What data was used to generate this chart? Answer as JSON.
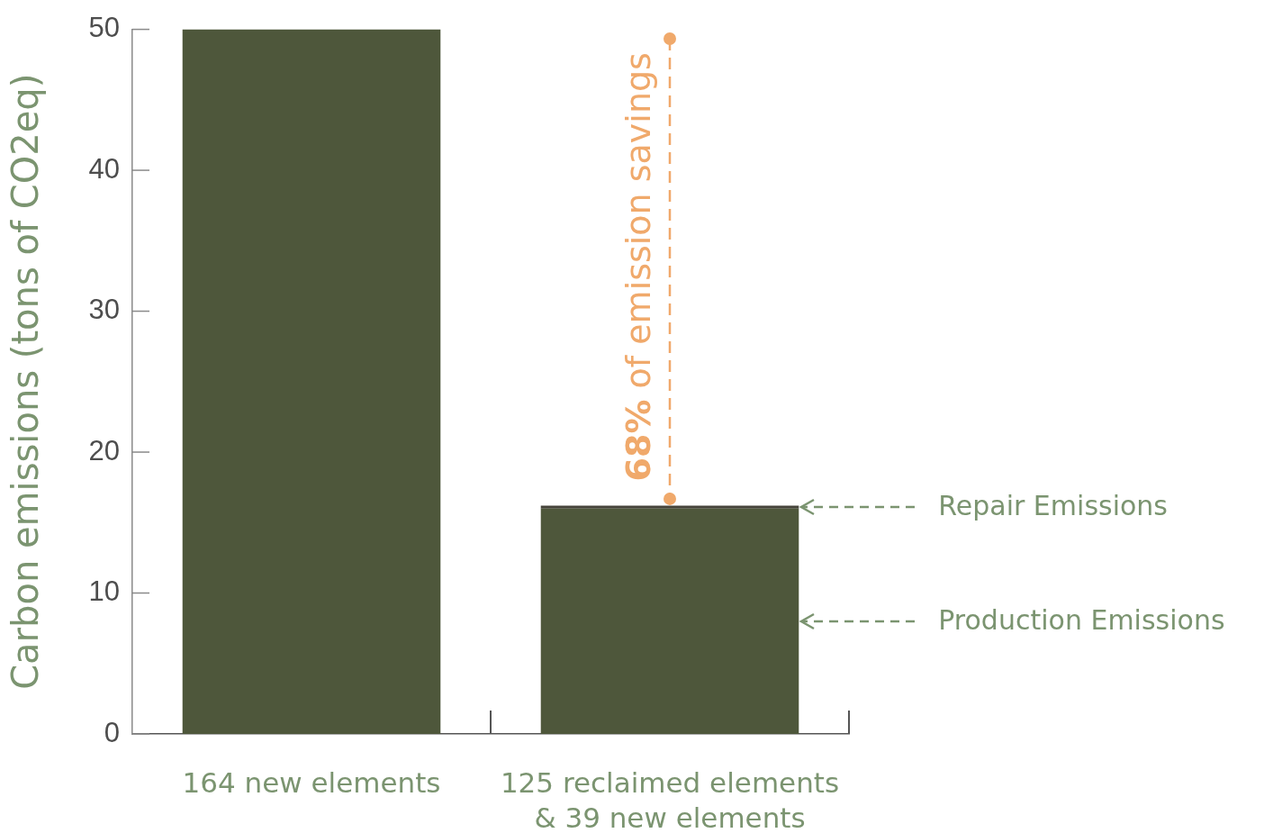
{
  "chart_data": {
    "type": "bar",
    "ylabel": "Carbon emissions (tons of CO2eq)",
    "categories": [
      "164 new elements",
      "125 reclaimed elements & 39 new elements"
    ],
    "series": [
      {
        "name": "Production Emissions",
        "color": "#4e573b",
        "values": [
          50,
          16
        ]
      },
      {
        "name": "Repair Emissions",
        "color": "#46443a",
        "values": [
          null,
          0.2
        ]
      }
    ],
    "stacked": true,
    "ylim": [
      0,
      50
    ],
    "yticks": [
      0,
      10,
      20,
      30,
      40,
      50
    ],
    "annotations": [
      "68% of emission savings"
    ]
  }
}
